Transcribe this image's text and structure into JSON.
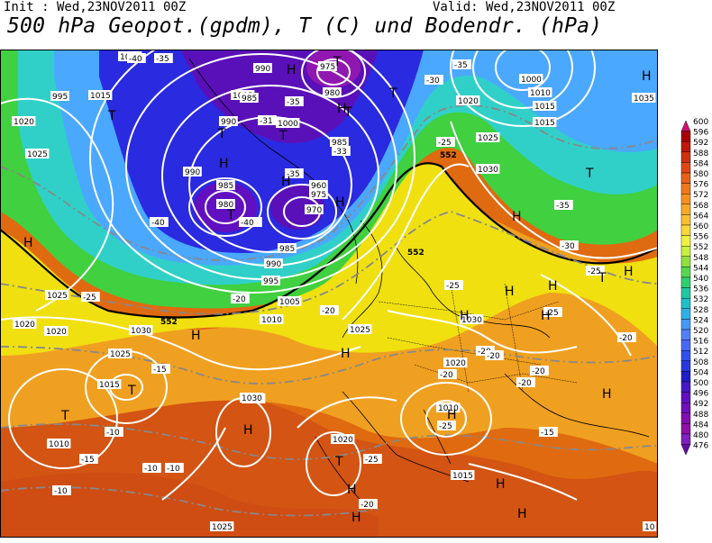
{
  "header": {
    "init": "Init : Wed,23NOV2011 00Z",
    "valid": "Valid: Wed,23NOV2011 00Z",
    "title": "500 hPa Geopot.(gpdm), T (C) und Bodendr. (hPa)"
  },
  "colors": {
    "deep_purple": "#5a0a8c",
    "blue": "#2a2ae0",
    "light_blue": "#4aa8ff",
    "cyan": "#30d0c8",
    "green": "#40d040",
    "yellow": "#f0e010",
    "orange": "#f0a020",
    "dark_orange": "#e06a10",
    "red": "#c03010"
  },
  "pressure_labels": [
    "1010",
    "990",
    "975",
    "995",
    "1000",
    "1005",
    "1010",
    "1015",
    "1015",
    "1020",
    "1025",
    "990",
    "985",
    "1000",
    "980",
    "985",
    "990",
    "985",
    "980",
    "960",
    "975",
    "970",
    "985",
    "990",
    "995",
    "1005",
    "1030",
    "1020",
    "1035",
    "1015",
    "1025",
    "1030",
    "1020",
    "1025",
    "1010",
    "1025",
    "1030",
    "1030",
    "1020",
    "1020",
    "1025",
    "1015",
    "1010",
    "1030",
    "1020",
    "1010",
    "1015",
    "1025",
    "10"
  ],
  "temp_labels": [
    "-40",
    "-35",
    "-35",
    "-31",
    "-35",
    "-40",
    "-35",
    "-33",
    "-30",
    "-35",
    "-25",
    "-25",
    "-20",
    "-40",
    "-35",
    "-30",
    "-25",
    "-25",
    "-20",
    "-20",
    "-15",
    "-10",
    "-15",
    "-10",
    "-10",
    "-20",
    "-25",
    "-20",
    "-20",
    "-20",
    "-25",
    "-25",
    "-20",
    "-15",
    "-20",
    "-10"
  ],
  "height_labels": [
    "552",
    "552",
    "552"
  ],
  "highs_lows": [
    {
      "t": "T"
    },
    {
      "t": "T"
    },
    {
      "t": "T"
    },
    {
      "t": "T"
    },
    {
      "t": "T"
    },
    {
      "t": "T"
    },
    {
      "t": "T"
    },
    {
      "t": "T"
    },
    {
      "t": "T"
    },
    {
      "t": "T"
    },
    {
      "t": "T"
    },
    {
      "t": "T"
    },
    {
      "t": "H"
    },
    {
      "t": "H"
    },
    {
      "t": "H"
    },
    {
      "t": "H"
    },
    {
      "t": "H"
    },
    {
      "t": "H"
    },
    {
      "t": "H"
    },
    {
      "t": "H"
    },
    {
      "t": "H"
    },
    {
      "t": "H"
    },
    {
      "t": "H"
    },
    {
      "t": "H"
    },
    {
      "t": "H"
    },
    {
      "t": "H"
    },
    {
      "t": "H"
    },
    {
      "t": "H"
    },
    {
      "t": "H"
    },
    {
      "t": "H"
    },
    {
      "t": "H"
    },
    {
      "t": "H"
    },
    {
      "t": "H"
    },
    {
      "t": "H"
    }
  ],
  "colorbar": {
    "values": [
      "600",
      "596",
      "592",
      "588",
      "584",
      "580",
      "576",
      "572",
      "568",
      "564",
      "560",
      "556",
      "552",
      "548",
      "544",
      "540",
      "536",
      "532",
      "528",
      "524",
      "520",
      "516",
      "512",
      "508",
      "504",
      "500",
      "496",
      "492",
      "488",
      "484",
      "480",
      "476"
    ],
    "colors": [
      "#d01070",
      "#a80000",
      "#c01808",
      "#d03010",
      "#e04818",
      "#e86018",
      "#f07818",
      "#f89020",
      "#f8a828",
      "#f8c030",
      "#f8d838",
      "#f0f040",
      "#c8f040",
      "#90e040",
      "#58d850",
      "#30d070",
      "#20c8a0",
      "#20c0c8",
      "#30b0e8",
      "#4898f8",
      "#5080f8",
      "#4868f8",
      "#3050f0",
      "#2838e0",
      "#2020c8",
      "#4818c8",
      "#6010c0",
      "#7010b8",
      "#8010b0",
      "#9010a8",
      "#8020c0",
      "#6010a0"
    ]
  }
}
